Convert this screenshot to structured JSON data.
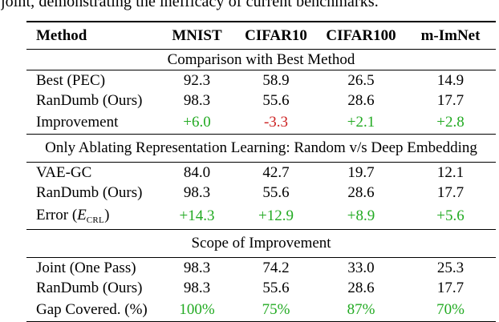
{
  "caption_partial": "joint, demonstrating the inefficacy of current benchmarks.",
  "colors": {
    "green": "#22aa22",
    "red": "#cc2222",
    "text": "#000000",
    "rule": "#000000"
  },
  "table": {
    "columns": [
      "Method",
      "MNIST",
      "CIFAR10",
      "CIFAR100",
      "m-ImNet"
    ],
    "sections": [
      {
        "title": "Comparison with Best Method",
        "rows": [
          {
            "method": "Best (PEC)",
            "values": [
              "92.3",
              "58.9",
              "26.5",
              "14.9"
            ]
          },
          {
            "method": "RanDumb (Ours)",
            "values": [
              "98.3",
              "55.6",
              "28.6",
              "17.7"
            ]
          },
          {
            "method": "Improvement",
            "values": [
              "+6.0",
              "-3.3",
              "+2.1",
              "+2.8"
            ],
            "value_colors": [
              "green",
              "red",
              "green",
              "green"
            ]
          }
        ]
      },
      {
        "title": "Only Ablating Representation Learning: Random v/s Deep Embedding",
        "rows": [
          {
            "method": "VAE-GC",
            "values": [
              "84.0",
              "42.7",
              "19.7",
              "12.1"
            ]
          },
          {
            "method": "RanDumb (Ours)",
            "values": [
              "98.3",
              "55.6",
              "28.6",
              "17.7"
            ]
          },
          {
            "method_parts": {
              "prefix": "Error (",
              "symbol": "E",
              "subscript": "CRL",
              "suffix": ")"
            },
            "values": [
              "+14.3",
              "+12.9",
              "+8.9",
              "+5.6"
            ],
            "value_colors": [
              "green",
              "green",
              "green",
              "green"
            ]
          }
        ]
      },
      {
        "title": "Scope of Improvement",
        "rows": [
          {
            "method": "Joint (One Pass)",
            "values": [
              "98.3",
              "74.2",
              "33.0",
              "25.3"
            ]
          },
          {
            "method": "RanDumb (Ours)",
            "values": [
              "98.3",
              "55.6",
              "28.6",
              "17.7"
            ]
          },
          {
            "method": "Gap Covered. (%)",
            "values": [
              "100%",
              "75%",
              "87%",
              "70%"
            ],
            "value_colors": [
              "green",
              "green",
              "green",
              "green"
            ]
          }
        ]
      }
    ]
  }
}
